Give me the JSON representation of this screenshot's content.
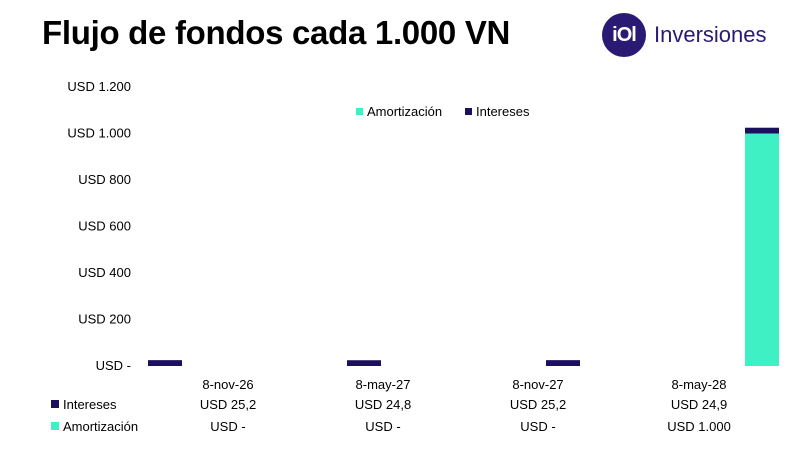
{
  "header": {
    "title": "Flujo de fondos cada 1.000 VN",
    "logo_mark": "iOl",
    "logo_text": "Inversiones"
  },
  "colors": {
    "intereses": "#1c0f5e",
    "amortizacion": "#3ff0c4",
    "brand": "#2b1a74"
  },
  "chart_data": {
    "type": "bar",
    "stacked": true,
    "title": "Flujo de fondos cada 1.000 VN",
    "categories": [
      "8-nov-26",
      "8-may-27",
      "8-nov-27",
      "8-may-28"
    ],
    "series": [
      {
        "name": "Amortización",
        "values": [
          0,
          0,
          0,
          1000
        ],
        "color": "#3ff0c4"
      },
      {
        "name": "Intereses",
        "values": [
          25.2,
          24.8,
          25.2,
          24.9
        ],
        "color": "#1c0f5e"
      }
    ],
    "yticks": [
      {
        "value": 0,
        "label": "USD -"
      },
      {
        "value": 200,
        "label": "USD 200"
      },
      {
        "value": 400,
        "label": "USD 400"
      },
      {
        "value": 600,
        "label": "USD 600"
      },
      {
        "value": 800,
        "label": "USD 800"
      },
      {
        "value": 1000,
        "label": "USD 1.000"
      },
      {
        "value": 1200,
        "label": "USD 1.200"
      }
    ],
    "ylim": [
      0,
      1200
    ],
    "grid": false,
    "legend_position": "top-right",
    "table": {
      "rows": [
        {
          "name": "Intereses",
          "color": "#1c0f5e",
          "cells": [
            "USD 25,2",
            "USD 24,8",
            "USD 25,2",
            "USD 24,9"
          ]
        },
        {
          "name": "Amortización",
          "color": "#3ff0c4",
          "cells": [
            "USD -",
            "USD -",
            "USD -",
            "USD 1.000"
          ]
        }
      ]
    }
  }
}
